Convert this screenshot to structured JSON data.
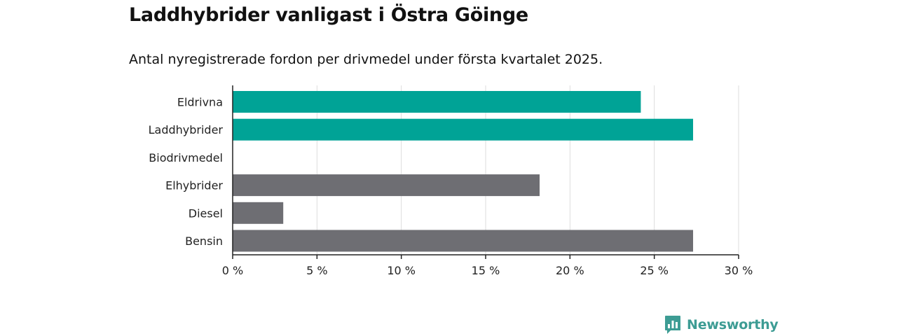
{
  "header": {
    "title": "Laddhybrider vanligast i Östra Göinge",
    "subtitle": "Antal nyregistrerade fordon per drivmedel under första kvartalet 2025."
  },
  "branding": {
    "logo_text": "Newsworthy",
    "logo_icon": "newsworthy-chart-icon",
    "color": "#3d9c94"
  },
  "colors": {
    "teal": "#00a396",
    "gray": "#6e6e73",
    "grid": "#dddddd",
    "axis": "#222222"
  },
  "chart_data": {
    "type": "bar",
    "orientation": "horizontal",
    "categories": [
      "Eldrivna",
      "Laddhybrider",
      "Biodrivmedel",
      "Elhybrider",
      "Diesel",
      "Bensin"
    ],
    "values": [
      24.2,
      27.3,
      0,
      18.2,
      3.0,
      27.3
    ],
    "bar_colors": [
      "#00a396",
      "#00a396",
      "#00a396",
      "#6e6e73",
      "#6e6e73",
      "#6e6e73"
    ],
    "xlim": [
      0,
      30
    ],
    "xticks": [
      0,
      5,
      10,
      15,
      20,
      25,
      30
    ],
    "xtick_labels": [
      "0 %",
      "5 %",
      "10 %",
      "15 %",
      "20 %",
      "25 %",
      "30 %"
    ],
    "grid": "vertical",
    "xlabel": "",
    "ylabel": ""
  }
}
